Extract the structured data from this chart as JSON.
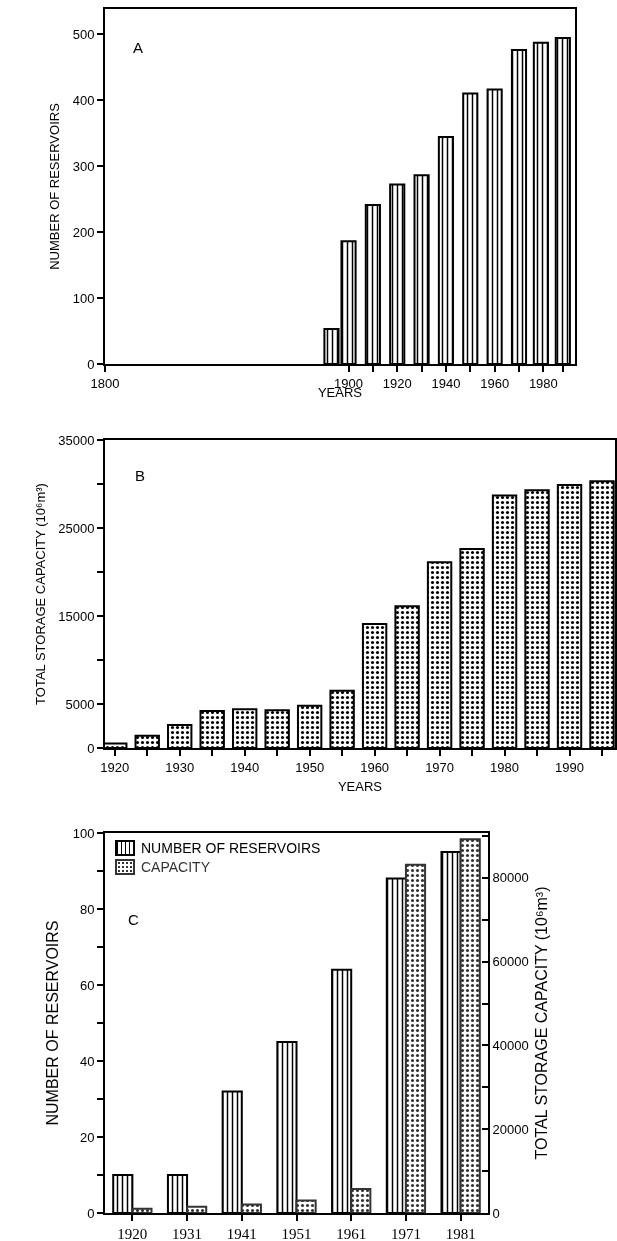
{
  "chart_data": [
    {
      "type": "bar",
      "xlabel": "YEARS",
      "ylabel": "NUMBER OF RESERVOIRS",
      "annotations": [
        "A"
      ],
      "x": [
        1893,
        1900,
        1910,
        1920,
        1930,
        1940,
        1950,
        1960,
        1970,
        1979,
        1988
      ],
      "values": [
        53,
        186,
        241,
        272,
        286,
        344,
        410,
        416,
        476,
        487,
        494
      ],
      "color": "#000000",
      "xlim": [
        1800,
        1993
      ],
      "xticks": [
        1800,
        1900,
        {
          "value": 1910,
          "label": null
        },
        1920,
        {
          "value": 1930,
          "label": null
        },
        1940,
        {
          "value": 1950,
          "label": null
        },
        1960,
        {
          "value": 1970,
          "label": null
        },
        1980,
        {
          "value": 1988,
          "label": null
        }
      ],
      "ylim": [
        0,
        538
      ],
      "yticks": [
        0,
        100,
        200,
        300,
        400,
        500
      ],
      "grid": false,
      "legend": false
    },
    {
      "type": "bar",
      "xlabel": "YEARS",
      "ylabel": "TOTAL STORAGE CAPACITY (10⁶m³)",
      "annotations": [
        "B"
      ],
      "x": [
        1920,
        1925,
        1930,
        1935,
        1940,
        1945,
        1950,
        1955,
        1960,
        1965,
        1970,
        1975,
        1980,
        1985,
        1990,
        1995
      ],
      "values": [
        500,
        1400,
        2600,
        4200,
        4400,
        4300,
        4800,
        6500,
        14100,
        16100,
        21100,
        22600,
        28700,
        29300,
        29900,
        30300
      ],
      "color": "#000000",
      "xlim": [
        1918.5,
        1997
      ],
      "xticks": [
        1920,
        {
          "value": 1925,
          "label": null
        },
        1930,
        {
          "value": 1935,
          "label": null
        },
        1940,
        {
          "value": 1945,
          "label": null
        },
        1950,
        {
          "value": 1955,
          "label": null
        },
        1960,
        {
          "value": 1965,
          "label": null
        },
        1970,
        {
          "value": 1975,
          "label": null
        },
        1980,
        {
          "value": 1985,
          "label": null
        },
        1990,
        {
          "value": 1995,
          "label": null
        }
      ],
      "ylim": [
        0,
        35000
      ],
      "yticks": [
        0,
        5000,
        {
          "value": 10000,
          "label": null
        },
        15000,
        {
          "value": 20000,
          "label": null
        },
        25000,
        {
          "value": 30000,
          "label": null
        },
        35000
      ],
      "grid": false,
      "legend": false
    },
    {
      "type": "bar",
      "ylabel": "NUMBER OF RESERVOIRS",
      "y2label": "TOTAL STORAGE CAPACITY (10⁶m³)",
      "annotations": [
        "C"
      ],
      "categories": [
        "1920",
        "1931",
        "1941",
        "1951",
        "1961",
        "1971",
        "1981"
      ],
      "series": [
        {
          "name": "NUMBER OF RESERVOIRS",
          "color": "#000000",
          "values": [
            10,
            10,
            32,
            45,
            64,
            88,
            95
          ]
        },
        {
          "name": "CAPACITY",
          "color": "#333333",
          "axis": "y2",
          "values": [
            1000,
            1500,
            2000,
            3000,
            5700,
            83100,
            89200
          ]
        }
      ],
      "ylim": [
        0,
        100
      ],
      "yticks": [
        0,
        {
          "value": 10,
          "label": null
        },
        20,
        {
          "value": 30,
          "label": null
        },
        40,
        {
          "value": 50,
          "label": null
        },
        60,
        {
          "value": 70,
          "label": null
        },
        80,
        {
          "value": 90,
          "label": null
        },
        100
      ],
      "y2lim": [
        0,
        90700
      ],
      "y2ticks": [
        0,
        {
          "value": 10000,
          "label": null
        },
        20000,
        {
          "value": 30000,
          "label": null
        },
        40000,
        {
          "value": 50000,
          "label": null
        },
        60000,
        {
          "value": 70000,
          "label": null
        },
        80000,
        {
          "value": 90000,
          "label": null
        }
      ],
      "grid": false,
      "legend": "top left"
    }
  ]
}
